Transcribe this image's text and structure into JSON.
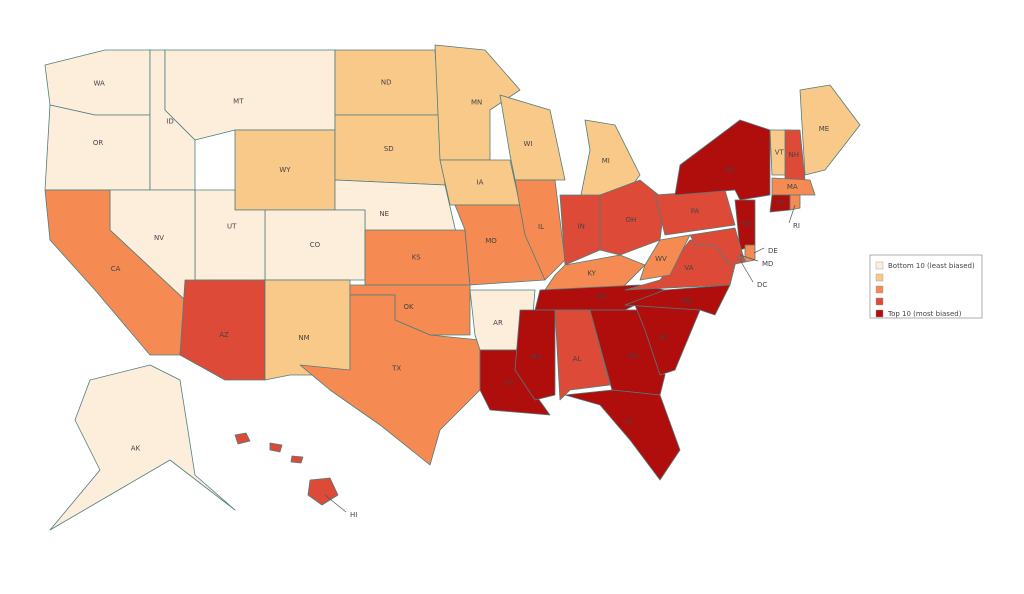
{
  "map": {
    "colors": [
      "#fdeedc",
      "#f9c98a",
      "#f58a53",
      "#dd4b38",
      "#b00d0d"
    ],
    "legend": [
      {
        "class": 1,
        "label": "Bottom 10 (least biased)"
      },
      {
        "class": 2
      },
      {
        "class": 3
      },
      {
        "class": 4
      },
      {
        "class": 5,
        "label": "Top 10 (most biased)"
      }
    ],
    "states": [
      {
        "abbr": "WA",
        "class": 1
      },
      {
        "abbr": "OR",
        "class": 1
      },
      {
        "abbr": "ID",
        "class": 1
      },
      {
        "abbr": "MT",
        "class": 1
      },
      {
        "abbr": "WY",
        "class": 2
      },
      {
        "abbr": "ND",
        "class": 2
      },
      {
        "abbr": "SD",
        "class": 2
      },
      {
        "abbr": "NE",
        "class": 1
      },
      {
        "abbr": "CO",
        "class": 1
      },
      {
        "abbr": "UT",
        "class": 1
      },
      {
        "abbr": "NV",
        "class": 1
      },
      {
        "abbr": "CA",
        "class": 3
      },
      {
        "abbr": "AZ",
        "class": 4
      },
      {
        "abbr": "NM",
        "class": 2
      },
      {
        "abbr": "KS",
        "class": 3
      },
      {
        "abbr": "OK",
        "class": 3
      },
      {
        "abbr": "TX",
        "class": 3
      },
      {
        "abbr": "MN",
        "class": 2
      },
      {
        "abbr": "IA",
        "class": 2
      },
      {
        "abbr": "MO",
        "class": 3
      },
      {
        "abbr": "AR",
        "class": 1
      },
      {
        "abbr": "LA",
        "class": 5
      },
      {
        "abbr": "WI",
        "class": 2
      },
      {
        "abbr": "IL",
        "class": 3
      },
      {
        "abbr": "MI",
        "class": 2
      },
      {
        "abbr": "IN",
        "class": 4
      },
      {
        "abbr": "OH",
        "class": 4
      },
      {
        "abbr": "KY",
        "class": 3
      },
      {
        "abbr": "TN",
        "class": 5
      },
      {
        "abbr": "MS",
        "class": 5
      },
      {
        "abbr": "AL",
        "class": 4
      },
      {
        "abbr": "GA",
        "class": 5
      },
      {
        "abbr": "FL",
        "class": 5
      },
      {
        "abbr": "SC",
        "class": 5
      },
      {
        "abbr": "NC",
        "class": 5
      },
      {
        "abbr": "VA",
        "class": 4
      },
      {
        "abbr": "WV",
        "class": 3
      },
      {
        "abbr": "PA",
        "class": 4
      },
      {
        "abbr": "NY",
        "class": 5
      },
      {
        "abbr": "NJ",
        "class": 5
      },
      {
        "abbr": "MD",
        "class": 4
      },
      {
        "abbr": "DE",
        "class": 3
      },
      {
        "abbr": "VT",
        "class": 2
      },
      {
        "abbr": "NH",
        "class": 4
      },
      {
        "abbr": "ME",
        "class": 2
      },
      {
        "abbr": "MA",
        "class": 3
      },
      {
        "abbr": "CT",
        "class": 5
      },
      {
        "abbr": "RI",
        "class": 3
      },
      {
        "abbr": "AK",
        "class": 1
      },
      {
        "abbr": "HI",
        "class": 4
      },
      {
        "abbr": "DC",
        "class": 4
      }
    ]
  }
}
